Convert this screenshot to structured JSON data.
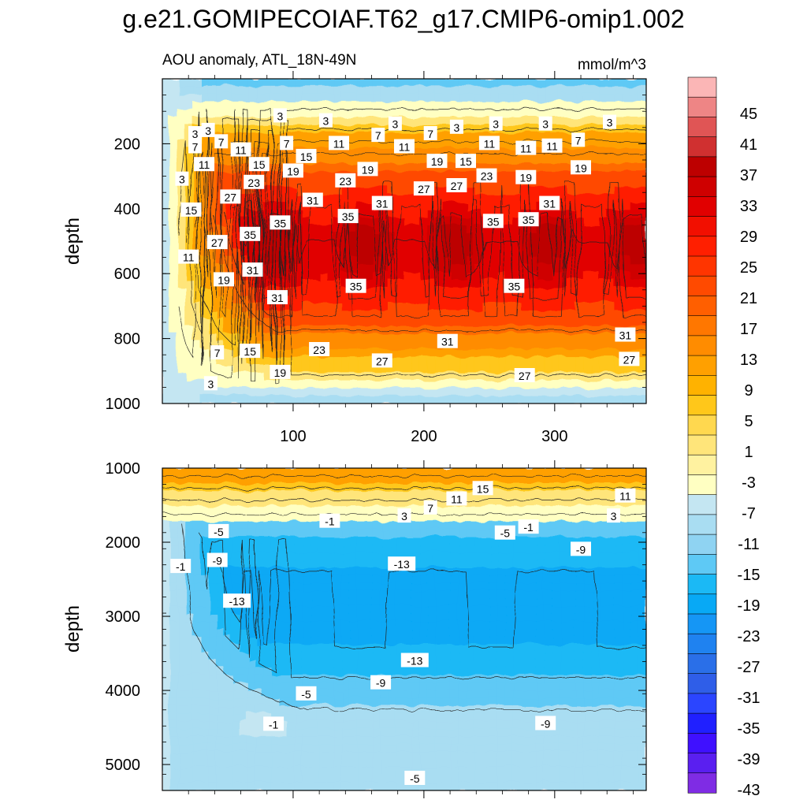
{
  "title": "g.e21.GOMIPECOIAF.T62_g17.CMIP6-omip1.002",
  "colors": {
    "levels": [
      "#7f2ce4",
      "#5a1ff0",
      "#3f10ff",
      "#2020ff",
      "#2b45ff",
      "#2f5ee8",
      "#2a6fe8",
      "#1f82f0",
      "#1596f5",
      "#08a9f5",
      "#1bb9f5",
      "#5ec9f5",
      "#8fd3f2",
      "#a9ddf2",
      "#c4e6f2",
      "#ffffc2",
      "#fff2a0",
      "#ffe57a",
      "#ffd84f",
      "#ffc71a",
      "#ffb200",
      "#ffa000",
      "#ff8c00",
      "#ff7700",
      "#ff5f00",
      "#ff4a00",
      "#ff3500",
      "#ff1f00",
      "#f20f00",
      "#e10000",
      "#cf0000",
      "#bd0000",
      "#d03030",
      "#e05555",
      "#ee8585",
      "#fbb6b6"
    ],
    "anomaly_ramp": [
      [
        -15,
        "#08a9f5"
      ],
      [
        -13,
        "#1bb9f5"
      ],
      [
        -9,
        "#5ec9f5"
      ],
      [
        -5,
        "#a9ddf2"
      ],
      [
        -1,
        "#c4e6f2"
      ],
      [
        1,
        "#ffffc2"
      ],
      [
        5,
        "#ffe57a"
      ],
      [
        9,
        "#ffc71a"
      ],
      [
        13,
        "#ffa000"
      ],
      [
        17,
        "#ff8c00"
      ],
      [
        21,
        "#ff6a00"
      ],
      [
        25,
        "#ff4a00"
      ],
      [
        29,
        "#ff1f00"
      ],
      [
        33,
        "#e10000"
      ],
      [
        35,
        "#cf0000"
      ],
      [
        37,
        "#bd0000"
      ]
    ]
  },
  "chart_data": [
    {
      "type": "heatmap",
      "title": "AOU anomaly, ATL_18N-49N",
      "units": "mmol/m^3",
      "ylabel": "depth",
      "xlabel": "",
      "xlim": [
        0,
        370
      ],
      "ylim": [
        0,
        1000
      ],
      "y_inverted": true,
      "xticks": [
        "100",
        "200",
        "300"
      ],
      "yticks": [
        "200",
        "400",
        "600",
        "800",
        "1000"
      ],
      "contour_labels": [
        {
          "x": 25,
          "y": 170,
          "v": "3"
        },
        {
          "x": 25,
          "y": 210,
          "v": "7"
        },
        {
          "x": 35,
          "y": 160,
          "v": "3"
        },
        {
          "x": 45,
          "y": 195,
          "v": "7"
        },
        {
          "x": 90,
          "y": 115,
          "v": "3"
        },
        {
          "x": 125,
          "y": 130,
          "v": "3"
        },
        {
          "x": 178,
          "y": 140,
          "v": "3"
        },
        {
          "x": 225,
          "y": 150,
          "v": "3"
        },
        {
          "x": 255,
          "y": 140,
          "v": "3"
        },
        {
          "x": 293,
          "y": 140,
          "v": "3"
        },
        {
          "x": 342,
          "y": 135,
          "v": "3"
        },
        {
          "x": 95,
          "y": 200,
          "v": "7"
        },
        {
          "x": 165,
          "y": 175,
          "v": "7"
        },
        {
          "x": 205,
          "y": 170,
          "v": "7"
        },
        {
          "x": 318,
          "y": 190,
          "v": "7"
        },
        {
          "x": 60,
          "y": 220,
          "v": "11"
        },
        {
          "x": 135,
          "y": 200,
          "v": "11"
        },
        {
          "x": 185,
          "y": 210,
          "v": "11"
        },
        {
          "x": 250,
          "y": 200,
          "v": "11"
        },
        {
          "x": 278,
          "y": 215,
          "v": "11"
        },
        {
          "x": 298,
          "y": 208,
          "v": "11"
        },
        {
          "x": 32,
          "y": 265,
          "v": "11"
        },
        {
          "x": 15,
          "y": 310,
          "v": "3"
        },
        {
          "x": 110,
          "y": 240,
          "v": "15"
        },
        {
          "x": 74,
          "y": 265,
          "v": "15"
        },
        {
          "x": 232,
          "y": 255,
          "v": "15"
        },
        {
          "x": 22,
          "y": 405,
          "v": "15"
        },
        {
          "x": 100,
          "y": 285,
          "v": "19"
        },
        {
          "x": 157,
          "y": 280,
          "v": "19"
        },
        {
          "x": 210,
          "y": 255,
          "v": "19"
        },
        {
          "x": 278,
          "y": 305,
          "v": "19"
        },
        {
          "x": 320,
          "y": 275,
          "v": "19"
        },
        {
          "x": 70,
          "y": 320,
          "v": "23"
        },
        {
          "x": 140,
          "y": 315,
          "v": "23"
        },
        {
          "x": 248,
          "y": 300,
          "v": "23"
        },
        {
          "x": 52,
          "y": 365,
          "v": "27"
        },
        {
          "x": 200,
          "y": 340,
          "v": "27"
        },
        {
          "x": 225,
          "y": 330,
          "v": "27"
        },
        {
          "x": 115,
          "y": 375,
          "v": "31"
        },
        {
          "x": 168,
          "y": 385,
          "v": "31"
        },
        {
          "x": 296,
          "y": 385,
          "v": "31"
        },
        {
          "x": 90,
          "y": 445,
          "v": "35"
        },
        {
          "x": 142,
          "y": 425,
          "v": "35"
        },
        {
          "x": 253,
          "y": 440,
          "v": "35"
        },
        {
          "x": 280,
          "y": 435,
          "v": "35"
        },
        {
          "x": 67,
          "y": 480,
          "v": "35"
        },
        {
          "x": 42,
          "y": 505,
          "v": "27"
        },
        {
          "x": 20,
          "y": 550,
          "v": "11"
        },
        {
          "x": 47,
          "y": 620,
          "v": "19"
        },
        {
          "x": 69,
          "y": 590,
          "v": "31"
        },
        {
          "x": 88,
          "y": 675,
          "v": "31"
        },
        {
          "x": 148,
          "y": 640,
          "v": "35"
        },
        {
          "x": 269,
          "y": 640,
          "v": "35"
        },
        {
          "x": 42,
          "y": 845,
          "v": "7"
        },
        {
          "x": 67,
          "y": 840,
          "v": "15"
        },
        {
          "x": 120,
          "y": 835,
          "v": "23"
        },
        {
          "x": 168,
          "y": 870,
          "v": "27"
        },
        {
          "x": 218,
          "y": 810,
          "v": "31"
        },
        {
          "x": 354,
          "y": 790,
          "v": "31"
        },
        {
          "x": 357,
          "y": 865,
          "v": "27"
        },
        {
          "x": 277,
          "y": 915,
          "v": "27"
        },
        {
          "x": 90,
          "y": 905,
          "v": "19"
        },
        {
          "x": 37,
          "y": 940,
          "v": "3"
        }
      ]
    },
    {
      "type": "heatmap",
      "title": "",
      "units": "",
      "ylabel": "depth",
      "xlabel": "",
      "xlim": [
        0,
        370
      ],
      "ylim": [
        1000,
        5350
      ],
      "y_inverted": true,
      "xticks": [],
      "yticks": [
        "1000",
        "2000",
        "3000",
        "4000",
        "5000"
      ],
      "contour_labels": [
        {
          "x": 245,
          "y": 1280,
          "v": "15"
        },
        {
          "x": 225,
          "y": 1420,
          "v": "11"
        },
        {
          "x": 354,
          "y": 1380,
          "v": "11"
        },
        {
          "x": 205,
          "y": 1540,
          "v": "7"
        },
        {
          "x": 185,
          "y": 1650,
          "v": "3"
        },
        {
          "x": 345,
          "y": 1650,
          "v": "3"
        },
        {
          "x": 128,
          "y": 1720,
          "v": "-1"
        },
        {
          "x": 280,
          "y": 1800,
          "v": "-1"
        },
        {
          "x": 262,
          "y": 1880,
          "v": "-5"
        },
        {
          "x": 43,
          "y": 1860,
          "v": "-5"
        },
        {
          "x": 320,
          "y": 2100,
          "v": "-9"
        },
        {
          "x": 42,
          "y": 2250,
          "v": "-9"
        },
        {
          "x": 14,
          "y": 2330,
          "v": "-1"
        },
        {
          "x": 183,
          "y": 2300,
          "v": "-13"
        },
        {
          "x": 57,
          "y": 2800,
          "v": "-13"
        },
        {
          "x": 193,
          "y": 3600,
          "v": "-13"
        },
        {
          "x": 167,
          "y": 3900,
          "v": "-9"
        },
        {
          "x": 110,
          "y": 4050,
          "v": "-5"
        },
        {
          "x": 293,
          "y": 4450,
          "v": "-9"
        },
        {
          "x": 85,
          "y": 4460,
          "v": "-1"
        },
        {
          "x": 193,
          "y": 5190,
          "v": "-5"
        }
      ]
    }
  ],
  "colorbar": {
    "labels": [
      "45",
      "41",
      "37",
      "33",
      "29",
      "25",
      "21",
      "17",
      "13",
      "9",
      "5",
      "1",
      "-3",
      "-7",
      "-11",
      "-15",
      "-19",
      "-23",
      "-27",
      "-31",
      "-35",
      "-39",
      "-43"
    ]
  }
}
